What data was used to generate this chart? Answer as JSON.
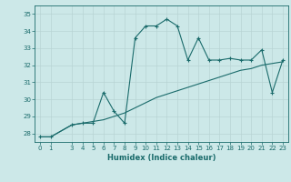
{
  "xlabel": "Humidex (Indice chaleur)",
  "background_color": "#cce8e8",
  "line_color": "#1a6b6b",
  "grid_color": "#b8d4d4",
  "x_ticks": [
    0,
    1,
    3,
    4,
    5,
    6,
    7,
    8,
    9,
    10,
    11,
    12,
    13,
    14,
    15,
    16,
    17,
    18,
    19,
    20,
    21,
    22,
    23
  ],
  "ylim": [
    27.5,
    35.5
  ],
  "xlim": [
    -0.5,
    23.5
  ],
  "yticks": [
    28,
    29,
    30,
    31,
    32,
    33,
    34,
    35
  ],
  "series1_x": [
    0,
    1,
    3,
    4,
    5,
    6,
    7,
    8,
    9,
    10,
    11,
    12,
    13,
    14,
    15,
    16,
    17,
    18,
    19,
    20,
    21,
    22,
    23
  ],
  "series1_y": [
    27.8,
    27.8,
    28.5,
    28.6,
    28.6,
    30.4,
    29.3,
    28.6,
    33.6,
    34.3,
    34.3,
    34.7,
    34.3,
    32.3,
    33.6,
    32.3,
    32.3,
    32.4,
    32.3,
    32.3,
    32.9,
    30.4,
    32.3
  ],
  "series2_x": [
    0,
    1,
    3,
    4,
    5,
    6,
    7,
    8,
    9,
    10,
    11,
    12,
    13,
    14,
    15,
    16,
    17,
    18,
    19,
    20,
    21,
    22,
    23
  ],
  "series2_y": [
    27.8,
    27.8,
    28.5,
    28.6,
    28.7,
    28.8,
    29.0,
    29.2,
    29.5,
    29.8,
    30.1,
    30.3,
    30.5,
    30.7,
    30.9,
    31.1,
    31.3,
    31.5,
    31.7,
    31.8,
    32.0,
    32.1,
    32.2
  ]
}
